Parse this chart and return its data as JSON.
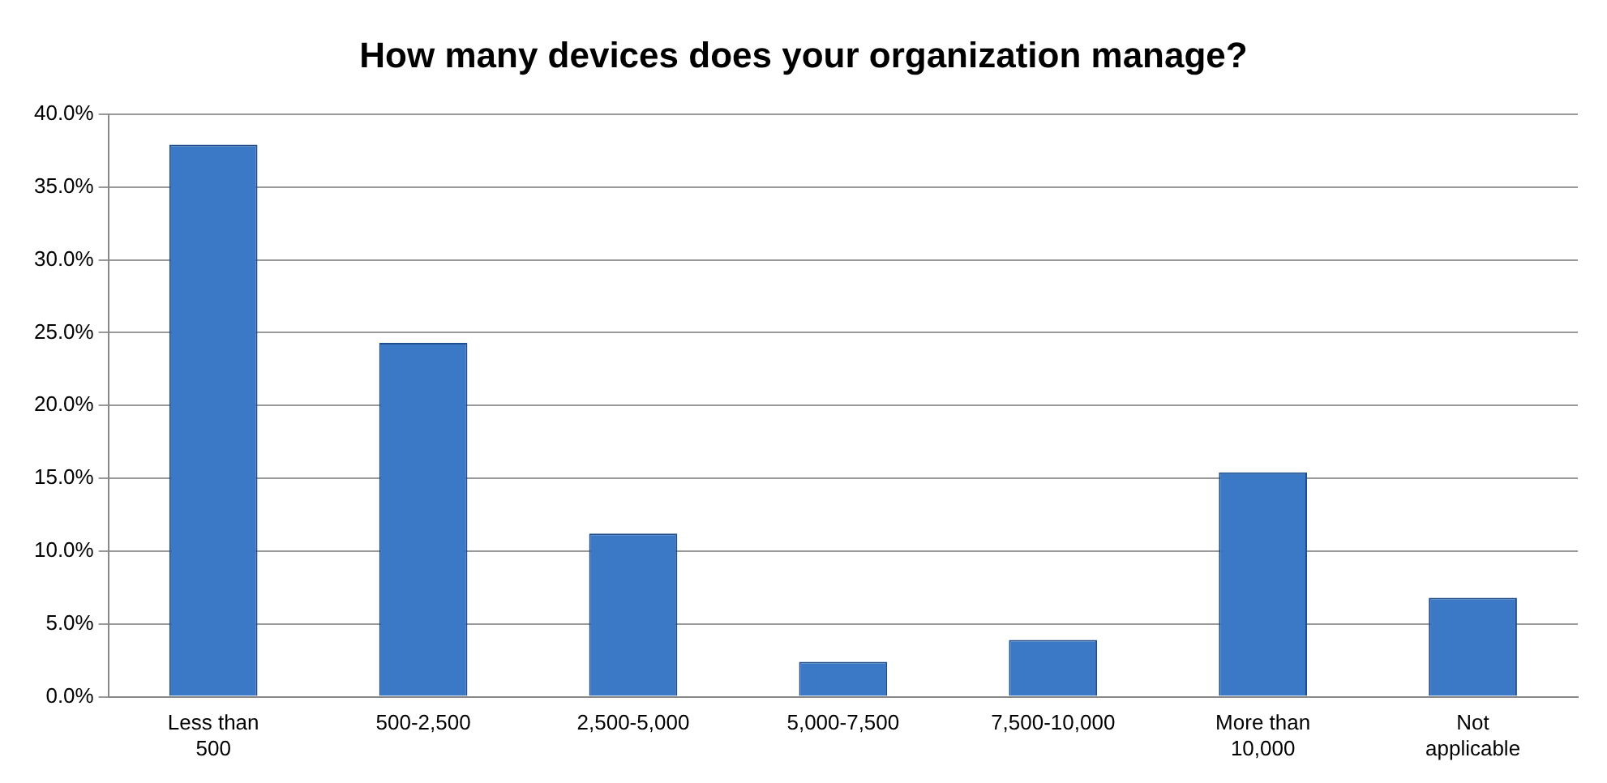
{
  "chart_data": {
    "type": "bar",
    "title": "How many devices does your organization manage?",
    "categories": [
      "Less than 500",
      "500-2,500",
      "2,500-5,000",
      "5,000-7,500",
      "7,500-10,000",
      "More than 10,000",
      "Not applicable"
    ],
    "values": [
      37.9,
      24.3,
      11.2,
      2.4,
      3.9,
      15.4,
      6.8
    ],
    "color": "#3b78c6",
    "ylim": [
      0,
      40
    ],
    "yticks": [
      {
        "value": 0,
        "label": "0.0%"
      },
      {
        "value": 5,
        "label": "5.0%"
      },
      {
        "value": 10,
        "label": "10.0%"
      },
      {
        "value": 15,
        "label": "15.0%"
      },
      {
        "value": 20,
        "label": "20.0%"
      },
      {
        "value": 25,
        "label": "25.0%"
      },
      {
        "value": 30,
        "label": "30.0%"
      },
      {
        "value": 35,
        "label": "35.0%"
      },
      {
        "value": 40,
        "label": "40.0%"
      }
    ],
    "grid": "y",
    "legend": false
  }
}
